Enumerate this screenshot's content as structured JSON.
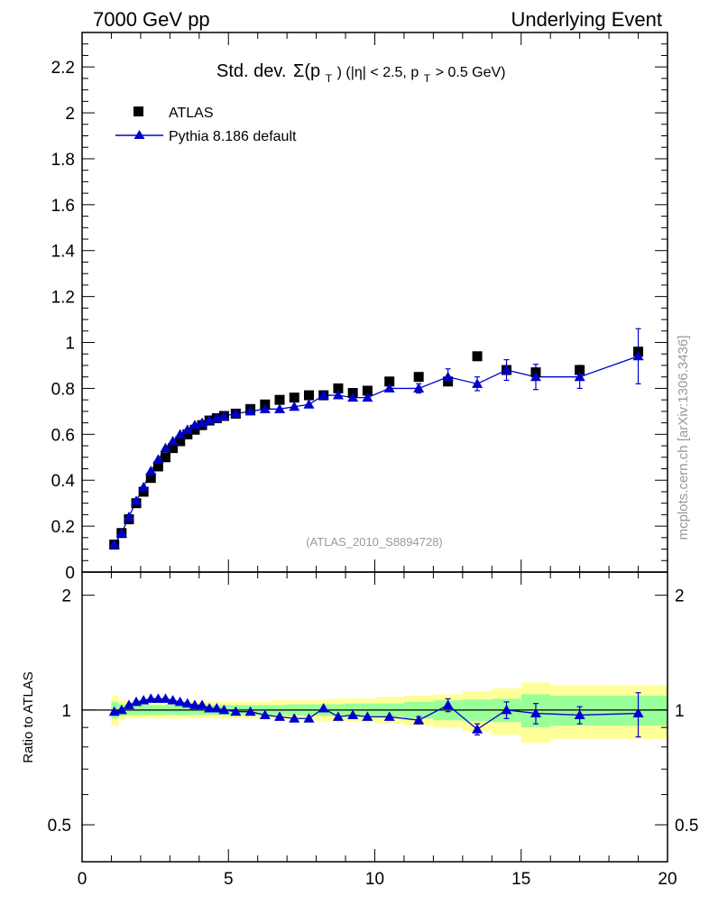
{
  "header": {
    "left": "7000 GeV pp",
    "right": "Underlying Event"
  },
  "watermark": "mcplots.cern.ch [arXiv:1306.3436]",
  "colors": {
    "mc": "#0000cc",
    "data": "#000000",
    "band_inner": "#99ff99",
    "band_outer": "#ffff99"
  },
  "chart_data": [
    {
      "type": "scatter",
      "title": "Std. dev. Σ(p_T) (|η| < 2.5, p_T > 0.5 GeV)",
      "title_parts": {
        "main": "Std. dev.",
        "sigma": "Σ(p",
        "sub_t": "T",
        "rest1": ") (|η| < 2.5, p",
        "rest2": " > 0.5 GeV)"
      },
      "analysis_label": "(ATLAS_2010_S8894728)",
      "xlim": [
        0,
        20
      ],
      "ylim": [
        0,
        2.35
      ],
      "ytick_labels": [
        "0",
        "0.2",
        "0.4",
        "0.6",
        "0.8",
        "1",
        "1.2",
        "1.4",
        "1.6",
        "1.8",
        "2",
        "2.2"
      ],
      "ytick_values": [
        0,
        0.2,
        0.4,
        0.6,
        0.8,
        1.0,
        1.2,
        1.4,
        1.6,
        1.8,
        2.0,
        2.2
      ],
      "legend_placement": "top-left",
      "series": [
        {
          "name": "ATLAS",
          "marker": "square",
          "x": [
            1.1,
            1.35,
            1.6,
            1.85,
            2.1,
            2.35,
            2.6,
            2.85,
            3.1,
            3.35,
            3.6,
            3.85,
            4.1,
            4.35,
            4.6,
            4.85,
            5.25,
            5.75,
            6.25,
            6.75,
            7.25,
            7.75,
            8.25,
            8.75,
            9.25,
            9.75,
            10.5,
            11.5,
            12.5,
            13.5,
            14.5,
            15.5,
            17.0,
            19.0
          ],
          "y": [
            0.12,
            0.17,
            0.23,
            0.3,
            0.35,
            0.41,
            0.46,
            0.5,
            0.54,
            0.57,
            0.6,
            0.62,
            0.64,
            0.66,
            0.67,
            0.68,
            0.69,
            0.71,
            0.73,
            0.75,
            0.76,
            0.77,
            0.77,
            0.8,
            0.78,
            0.79,
            0.83,
            0.85,
            0.83,
            0.94,
            0.88,
            0.87,
            0.88,
            0.96
          ]
        },
        {
          "name": "Pythia 8.186 default",
          "marker": "triangle",
          "x": [
            1.1,
            1.35,
            1.6,
            1.85,
            2.1,
            2.35,
            2.6,
            2.85,
            3.1,
            3.35,
            3.6,
            3.85,
            4.1,
            4.35,
            4.6,
            4.85,
            5.25,
            5.75,
            6.25,
            6.75,
            7.25,
            7.75,
            8.25,
            8.75,
            9.25,
            9.75,
            10.5,
            11.5,
            12.5,
            13.5,
            14.5,
            15.5,
            17.0,
            19.0
          ],
          "y": [
            0.12,
            0.17,
            0.24,
            0.31,
            0.37,
            0.44,
            0.49,
            0.54,
            0.57,
            0.6,
            0.62,
            0.64,
            0.65,
            0.66,
            0.67,
            0.68,
            0.69,
            0.7,
            0.71,
            0.71,
            0.72,
            0.73,
            0.77,
            0.77,
            0.76,
            0.76,
            0.8,
            0.8,
            0.85,
            0.82,
            0.88,
            0.85,
            0.85,
            0.94
          ],
          "yerr": [
            0,
            0,
            0,
            0,
            0,
            0,
            0,
            0,
            0,
            0,
            0,
            0,
            0,
            0,
            0,
            0,
            0,
            0,
            0,
            0,
            0,
            0,
            0,
            0,
            0,
            0,
            0,
            0.02,
            0.035,
            0.03,
            0.045,
            0.055,
            0.05,
            0.12
          ]
        }
      ]
    },
    {
      "type": "line",
      "ylabel": "Ratio to ATLAS",
      "xlim": [
        0,
        20
      ],
      "ylim": [
        0.4,
        2.3
      ],
      "y_scale": "log",
      "xtick_labels": [
        "0",
        "5",
        "10",
        "15",
        "20"
      ],
      "xtick_values": [
        0,
        5,
        10,
        15,
        20
      ],
      "ytick_labels": [
        "0.5",
        "1",
        "2"
      ],
      "ytick_values": [
        0.5,
        1,
        2
      ],
      "bands": {
        "edges": [
          1.0,
          1.25,
          1.5,
          1.75,
          2.0,
          2.25,
          2.5,
          2.75,
          3.0,
          3.25,
          3.5,
          3.75,
          4.0,
          4.25,
          4.5,
          4.75,
          5.0,
          5.5,
          6.0,
          6.5,
          7.0,
          7.5,
          8.0,
          8.5,
          9.0,
          9.5,
          10.0,
          11.0,
          12.0,
          13.0,
          14.0,
          15.0,
          16.0,
          18.0,
          20.0
        ],
        "inner": [
          0.05,
          0.035,
          0.03,
          0.03,
          0.03,
          0.03,
          0.03,
          0.03,
          0.03,
          0.03,
          0.03,
          0.03,
          0.03,
          0.03,
          0.03,
          0.03,
          0.03,
          0.03,
          0.03,
          0.03,
          0.035,
          0.035,
          0.035,
          0.035,
          0.04,
          0.04,
          0.04,
          0.05,
          0.06,
          0.065,
          0.07,
          0.1,
          0.09,
          0.09
        ],
        "outer": [
          0.09,
          0.06,
          0.05,
          0.05,
          0.05,
          0.05,
          0.05,
          0.05,
          0.05,
          0.05,
          0.05,
          0.05,
          0.05,
          0.05,
          0.05,
          0.05,
          0.05,
          0.05,
          0.05,
          0.06,
          0.06,
          0.06,
          0.065,
          0.07,
          0.07,
          0.07,
          0.08,
          0.09,
          0.1,
          0.12,
          0.14,
          0.18,
          0.16,
          0.16
        ]
      },
      "series": [
        {
          "name": "Pythia 8.186 default",
          "x": [
            1.1,
            1.35,
            1.6,
            1.85,
            2.1,
            2.35,
            2.6,
            2.85,
            3.1,
            3.35,
            3.6,
            3.85,
            4.1,
            4.35,
            4.6,
            4.85,
            5.25,
            5.75,
            6.25,
            6.75,
            7.25,
            7.75,
            8.25,
            8.75,
            9.25,
            9.75,
            10.5,
            11.5,
            12.5,
            13.5,
            14.5,
            15.5,
            17.0,
            19.0
          ],
          "y": [
            0.99,
            1.0,
            1.03,
            1.05,
            1.06,
            1.07,
            1.07,
            1.07,
            1.06,
            1.05,
            1.04,
            1.03,
            1.03,
            1.01,
            1.01,
            1.0,
            0.99,
            0.99,
            0.97,
            0.96,
            0.95,
            0.95,
            1.01,
            0.96,
            0.97,
            0.96,
            0.96,
            0.94,
            1.03,
            0.89,
            1.0,
            0.98,
            0.97,
            0.98
          ],
          "yerr": [
            0,
            0,
            0,
            0,
            0,
            0,
            0,
            0,
            0,
            0,
            0,
            0,
            0,
            0,
            0,
            0,
            0,
            0,
            0,
            0,
            0,
            0,
            0,
            0,
            0,
            0,
            0,
            0.02,
            0.04,
            0.03,
            0.05,
            0.06,
            0.05,
            0.13
          ]
        }
      ]
    }
  ]
}
